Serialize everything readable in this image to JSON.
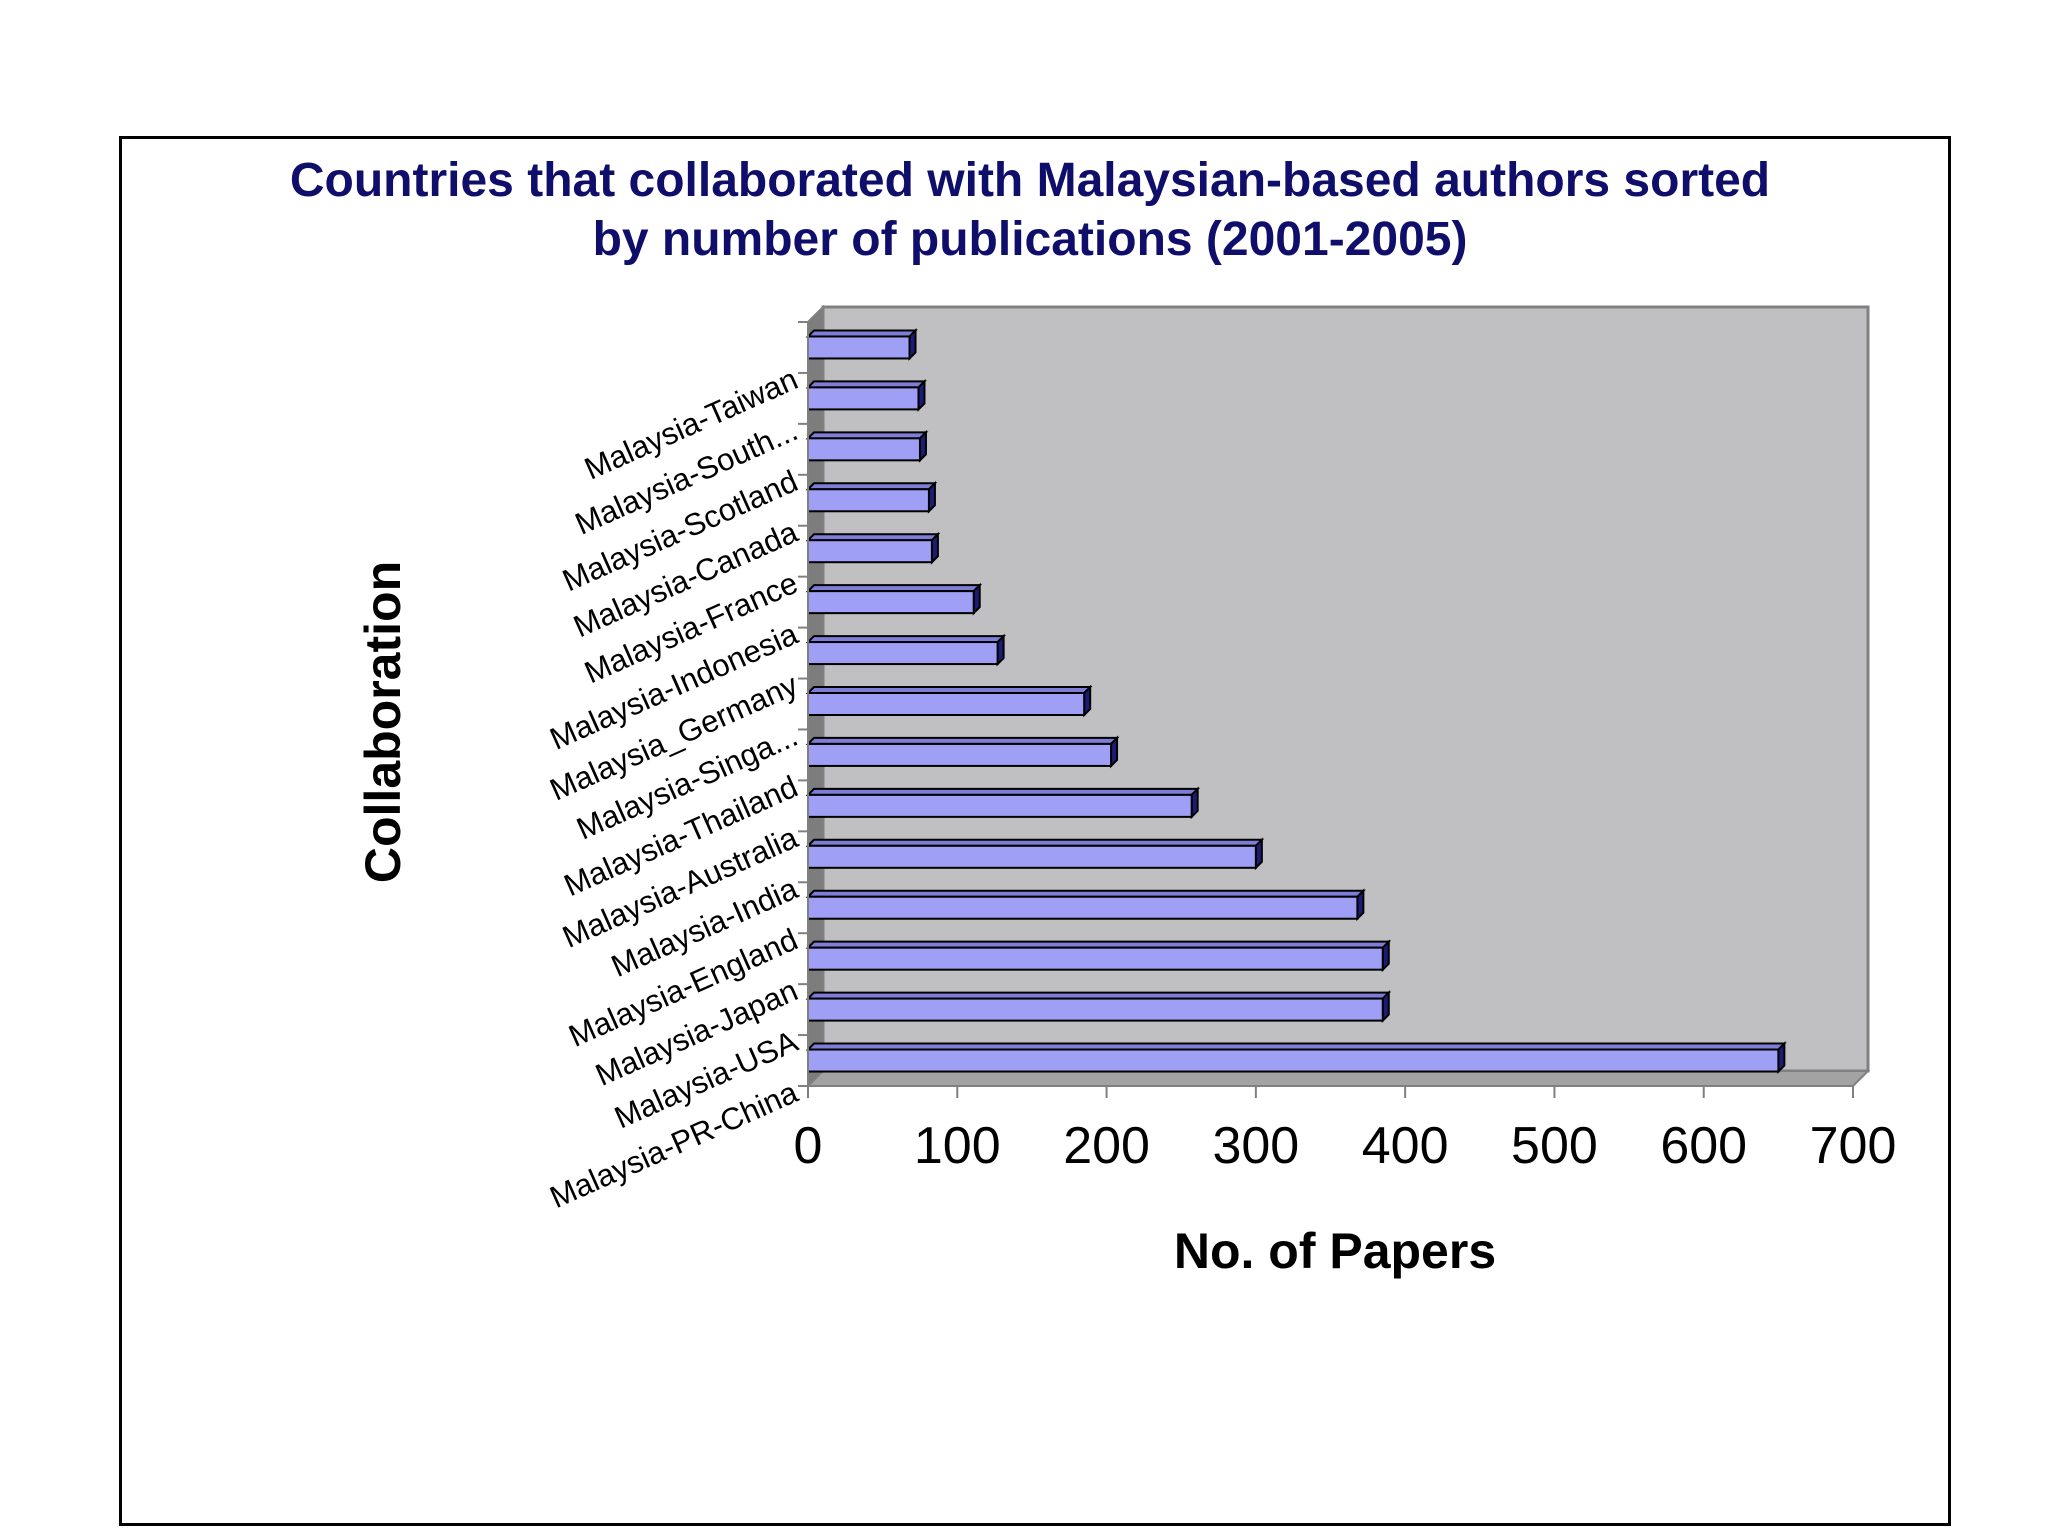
{
  "chart_data": {
    "type": "bar",
    "orientation": "horizontal",
    "style": "3d",
    "title_lines": [
      "Countries that collaborated with Malaysian-based authors sorted",
      "by number of publications (2001-2005)"
    ],
    "xlabel": "No. of Papers",
    "ylabel": "Collaboration",
    "xlim": [
      0,
      700
    ],
    "xticks": [
      "0",
      "100",
      "200",
      "300",
      "400",
      "500",
      "600",
      "700"
    ],
    "grid": false,
    "legend": "none",
    "categories": [
      "Malaysia-PR-China",
      "Malaysia-USA",
      "Malaysia-Japan",
      "Malaysia-England",
      "Malaysia-India",
      "Malaysia-Australia",
      "Malaysia-Thailand",
      "Malaysia-Singa...",
      "Malaysia_Germany",
      "Malaysia-Indonesia",
      "Malaysia-France",
      "Malaysia-Canada",
      "Malaysia-Scotland",
      "Malaysia-South...",
      "Malaysia-Taiwan"
    ],
    "values": [
      650,
      385,
      385,
      368,
      300,
      257,
      203,
      185,
      127,
      111,
      83,
      81,
      75,
      74,
      68
    ]
  },
  "colors": {
    "title": "#0f0f6b",
    "bar_front": "#9f9ff5",
    "bar_top": "#7e7ed8",
    "bar_side": "#1c1c78",
    "plot_back": "#c0bfc1",
    "plot_left_wall": "#7d7d7d",
    "plot_floor": "#a3a3a3"
  }
}
